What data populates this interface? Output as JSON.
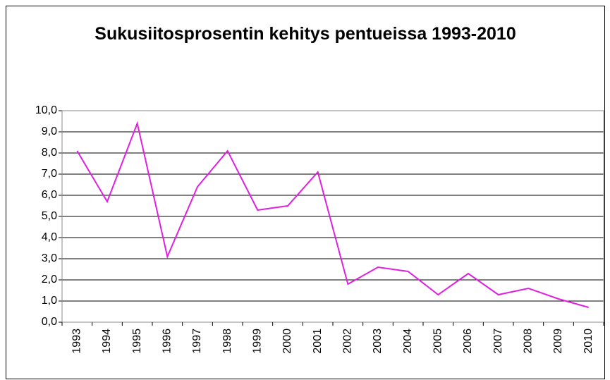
{
  "chart_data": {
    "type": "line",
    "title": "Sukusiitosprosentin kehitys pentueissa 1993-2010",
    "categories": [
      "1993",
      "1994",
      "1995",
      "1996",
      "1997",
      "1998",
      "1999",
      "2000",
      "2001",
      "2002",
      "2003",
      "2004",
      "2005",
      "2006",
      "2007",
      "2008",
      "2009",
      "2010"
    ],
    "series": [
      {
        "color": "#e020e0",
        "values": [
          8.1,
          5.7,
          9.4,
          3.1,
          6.4,
          8.1,
          5.3,
          5.5,
          7.1,
          1.8,
          2.6,
          2.4,
          1.3,
          2.3,
          1.3,
          1.6,
          1.1,
          0.7
        ]
      }
    ],
    "ylim": [
      0,
      10
    ],
    "yticks": [
      {
        "value": 0,
        "label": "0,0"
      },
      {
        "value": 1,
        "label": "1,0"
      },
      {
        "value": 2,
        "label": "2,0"
      },
      {
        "value": 3,
        "label": "3,0"
      },
      {
        "value": 4,
        "label": "4,0"
      },
      {
        "value": 5,
        "label": "5,0"
      },
      {
        "value": 6,
        "label": "6,0"
      },
      {
        "value": 7,
        "label": "7,0"
      },
      {
        "value": 8,
        "label": "8,0"
      },
      {
        "value": 9,
        "label": "9,0"
      },
      {
        "value": 10,
        "label": "10,0"
      }
    ],
    "grid": true
  }
}
